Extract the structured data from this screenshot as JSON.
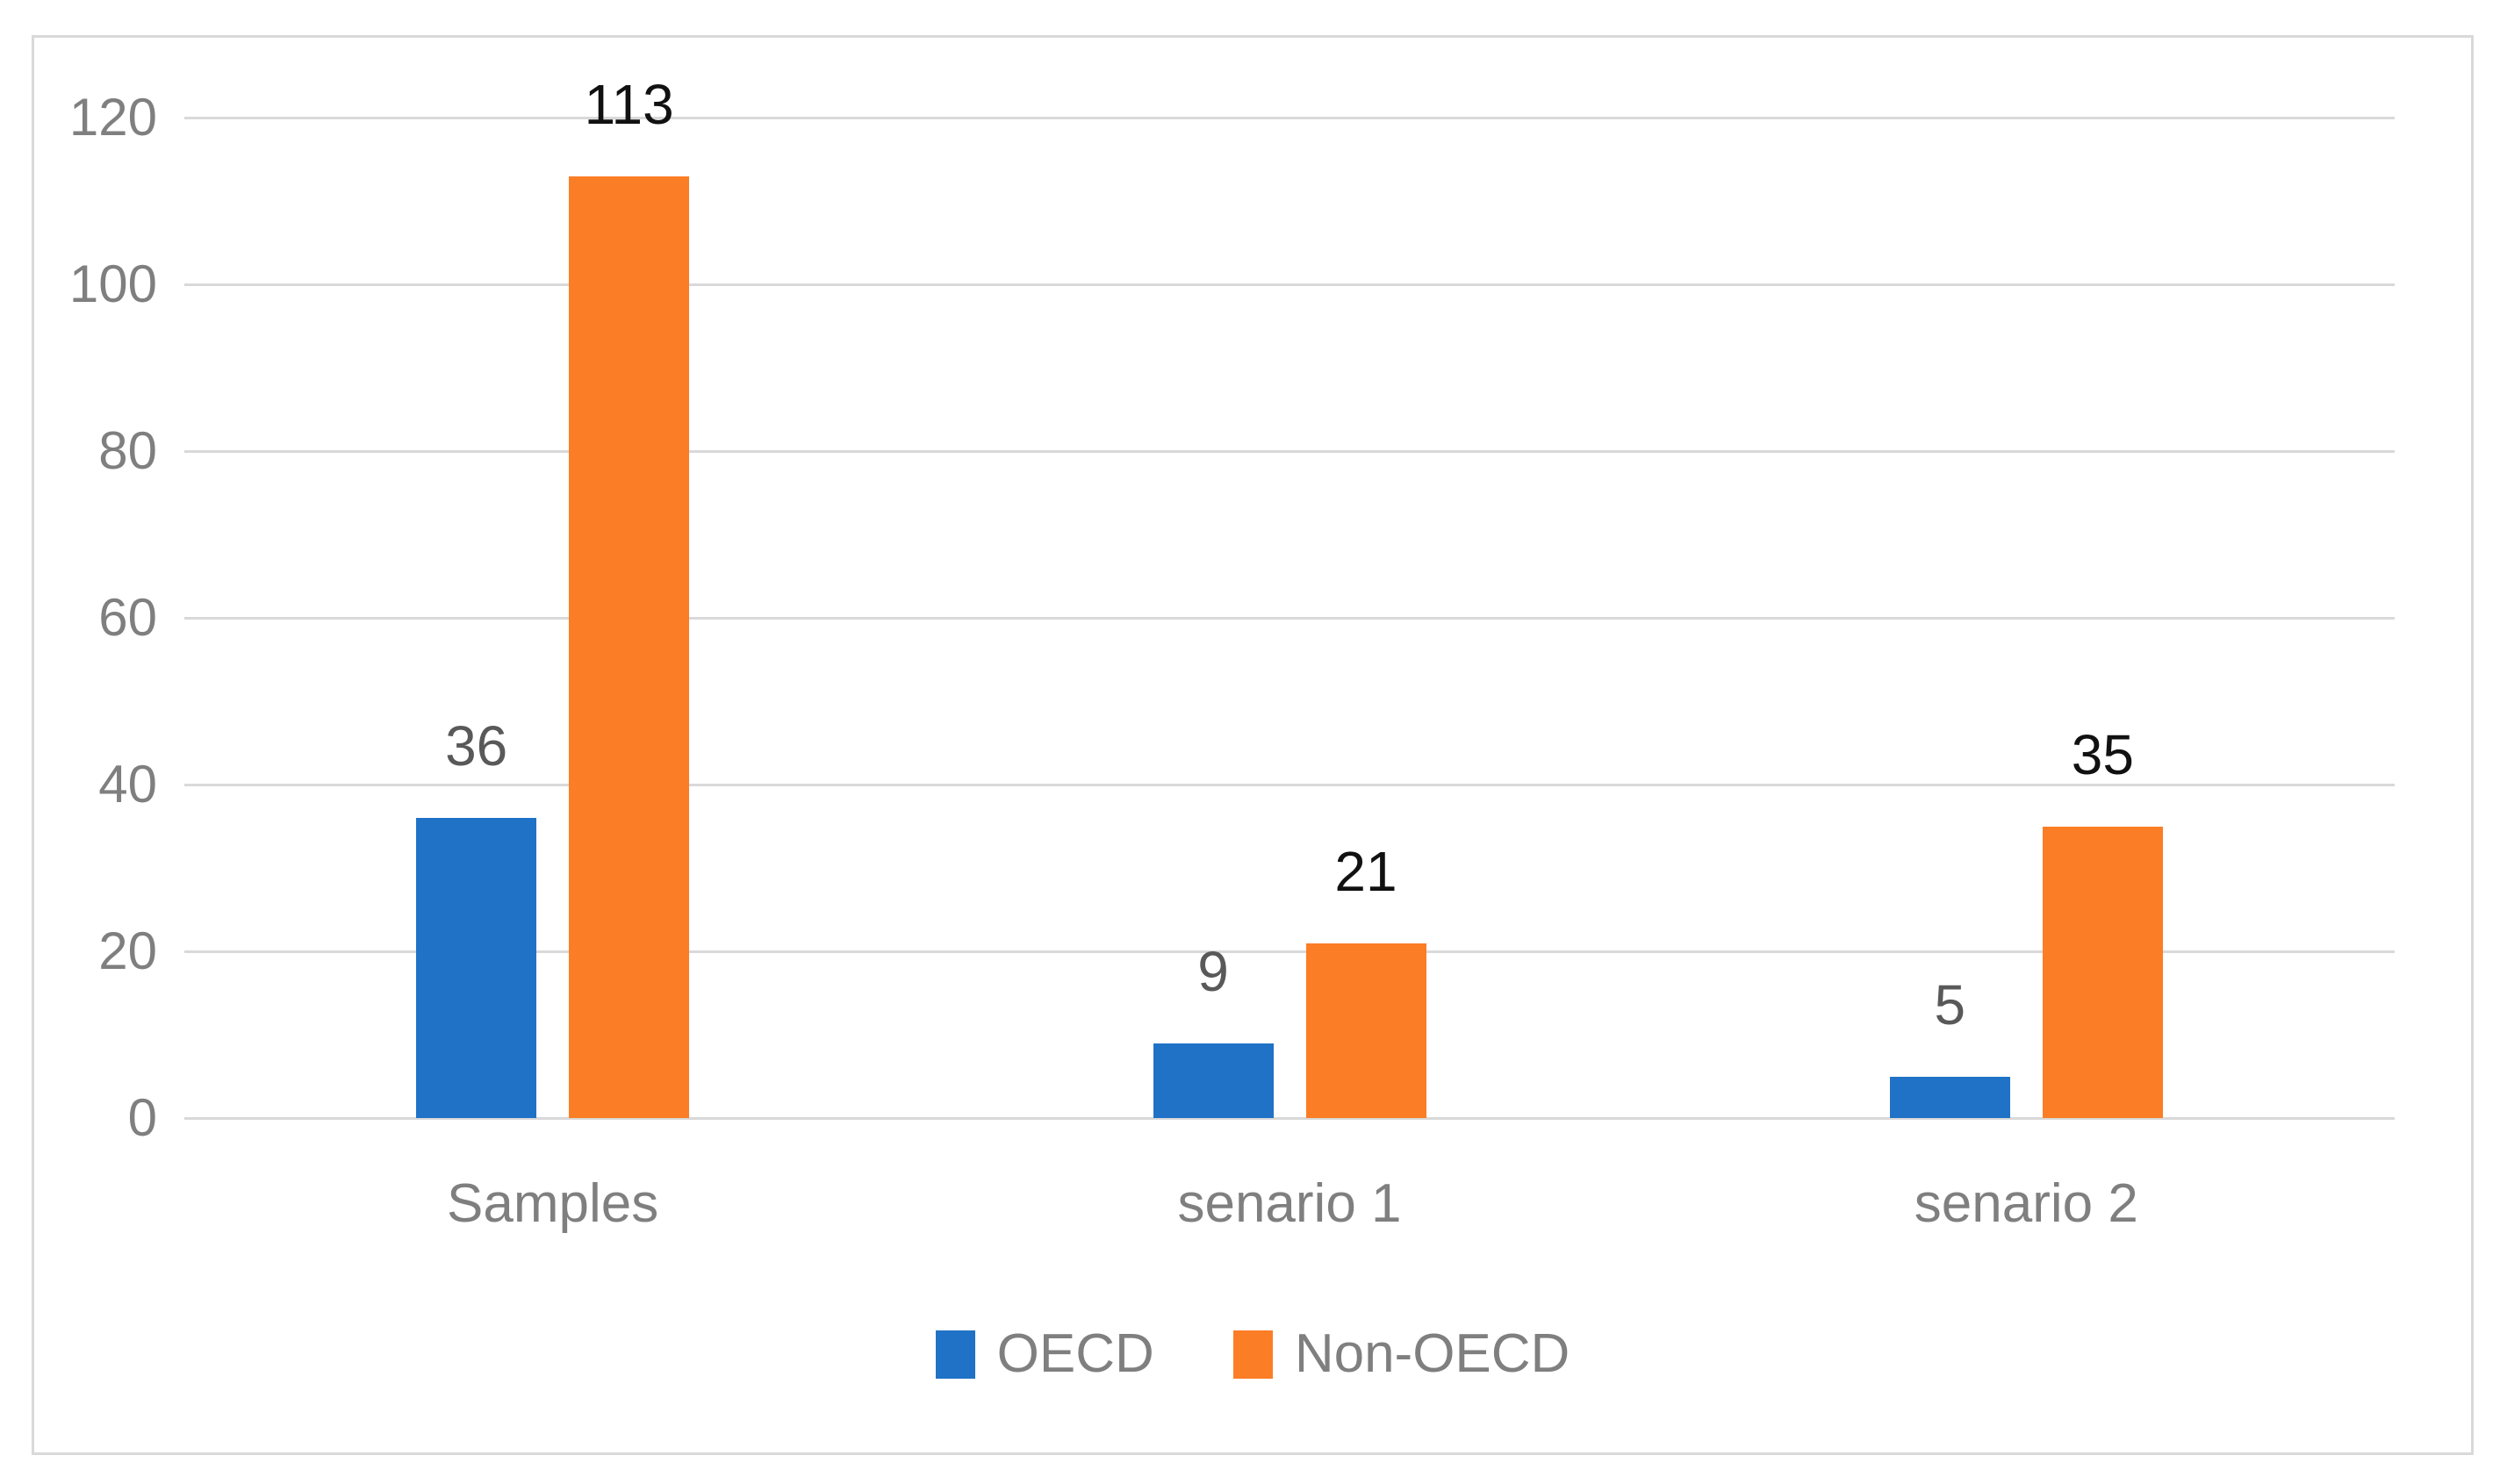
{
  "chart_data": {
    "type": "bar",
    "title": "",
    "xlabel": "",
    "ylabel": "",
    "categories": [
      "Samples",
      "senario 1",
      "senario 2"
    ],
    "series": [
      {
        "name": "OECD",
        "color": "#1F72C6",
        "label_color": "#595959",
        "values": [
          36,
          9,
          5
        ]
      },
      {
        "name": "Non-OECD",
        "color": "#FB7D26",
        "label_color": "#111111",
        "values": [
          113,
          21,
          35
        ]
      }
    ],
    "yticks": [
      0,
      20,
      40,
      60,
      80,
      100,
      120
    ],
    "ylim": [
      0,
      120
    ],
    "grid": true,
    "legend_position": "bottom",
    "data_labels": true
  },
  "colors": {
    "background": "#FFFFFF",
    "frame_border": "#D9D9D9",
    "gridline": "#D9D9D9",
    "axis_text": "#7F7F7F"
  }
}
